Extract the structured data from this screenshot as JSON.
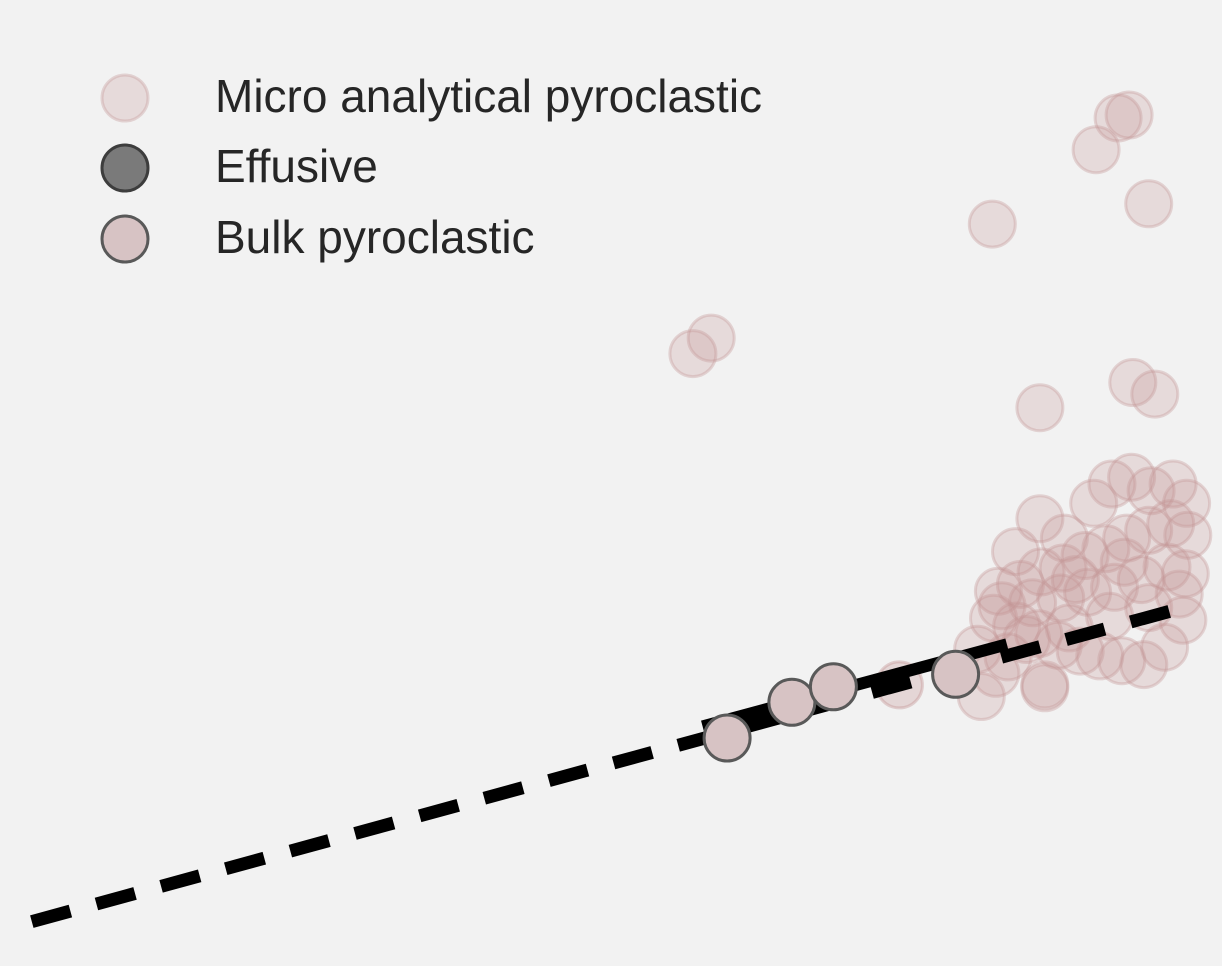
{
  "chart_data": {
    "type": "scatter",
    "title": "",
    "xlabel": "",
    "ylabel": "",
    "xlim": [
      0,
      100
    ],
    "ylim": [
      0,
      100
    ],
    "grid": false,
    "legend": {
      "placement": "top-left",
      "entries": [
        {
          "label": "Micro analytical pyroclastic",
          "series": "micro"
        },
        {
          "label": "Effusive",
          "series": "effusive"
        },
        {
          "label": "Bulk pyroclastic",
          "series": "bulk"
        }
      ]
    },
    "series": [
      {
        "id": "micro",
        "name": "Micro analytical pyroclastic",
        "color": "#c49494",
        "edge": "#c49494",
        "opacity": 0.25,
        "points": [
          [
            56.7,
            63.4
          ],
          [
            58.2,
            65.0
          ],
          [
            81.2,
            76.8
          ],
          [
            89.7,
            84.5
          ],
          [
            91.5,
            87.8
          ],
          [
            92.4,
            88.1
          ],
          [
            94.0,
            78.9
          ],
          [
            85.1,
            57.8
          ],
          [
            92.7,
            60.4
          ],
          [
            94.5,
            59.2
          ],
          [
            83.1,
            42.9
          ],
          [
            85.1,
            46.3
          ],
          [
            87.1,
            44.3
          ],
          [
            89.5,
            47.9
          ],
          [
            91.0,
            49.9
          ],
          [
            92.6,
            50.6
          ],
          [
            94.2,
            49.2
          ],
          [
            96.0,
            49.9
          ],
          [
            97.1,
            47.9
          ],
          [
            81.7,
            38.8
          ],
          [
            83.5,
            39.5
          ],
          [
            85.2,
            40.8
          ],
          [
            87.0,
            41.2
          ],
          [
            88.8,
            42.5
          ],
          [
            90.5,
            43.2
          ],
          [
            92.2,
            44.3
          ],
          [
            94.0,
            45.1
          ],
          [
            95.8,
            45.8
          ],
          [
            97.2,
            44.6
          ],
          [
            81.3,
            36.0
          ],
          [
            83.2,
            35.2
          ],
          [
            85.0,
            34.4
          ],
          [
            86.6,
            33.2
          ],
          [
            88.4,
            32.6
          ],
          [
            90.0,
            32.1
          ],
          [
            91.8,
            31.6
          ],
          [
            93.6,
            31.2
          ],
          [
            95.3,
            33.0
          ],
          [
            96.8,
            35.8
          ],
          [
            82.0,
            37.3
          ],
          [
            84.5,
            37.6
          ],
          [
            86.8,
            38.1
          ],
          [
            89.0,
            38.7
          ],
          [
            91.2,
            39.2
          ],
          [
            93.4,
            40.0
          ],
          [
            95.5,
            41.3
          ],
          [
            97.0,
            40.6
          ],
          [
            84.0,
            33.8
          ],
          [
            87.5,
            35.0
          ],
          [
            90.8,
            36.2
          ],
          [
            94.0,
            37.1
          ],
          [
            96.5,
            38.5
          ],
          [
            88.0,
            40.0
          ],
          [
            92.0,
            41.8
          ],
          [
            80.0,
            32.8
          ],
          [
            81.5,
            30.3
          ],
          [
            80.3,
            27.9
          ],
          [
            85.5,
            29.1
          ],
          [
            82.5,
            32.0
          ],
          [
            85.5,
            28.8
          ]
        ]
      },
      {
        "id": "bulk",
        "name": "Bulk pyroclastic",
        "color": "#d7c3c4",
        "edge": "#595959",
        "opacity": 1,
        "points": [
          [
            59.5,
            23.6
          ],
          [
            64.8,
            27.3
          ],
          [
            68.2,
            28.9
          ],
          [
            78.2,
            30.2
          ]
        ]
      },
      {
        "id": "bulk-light",
        "name": "",
        "color": "#c49494",
        "edge": "#c49494",
        "opacity": 0.3,
        "points": [
          [
            73.6,
            29.1
          ]
        ]
      }
    ],
    "lines": [
      {
        "name": "",
        "style": "dashed",
        "color": "#000000",
        "from": [
          2.6,
          4.6
        ],
        "to": [
          97.7,
          37.4
        ]
      },
      {
        "name": "",
        "style": "solid",
        "color": "#000000",
        "from": [
          57.5,
          24.8
        ],
        "to": [
          82.4,
          33.3
        ]
      }
    ],
    "marker": {
      "effusive_color": "#7a7a7a",
      "effusive_edge": "#3d3d3d"
    }
  }
}
